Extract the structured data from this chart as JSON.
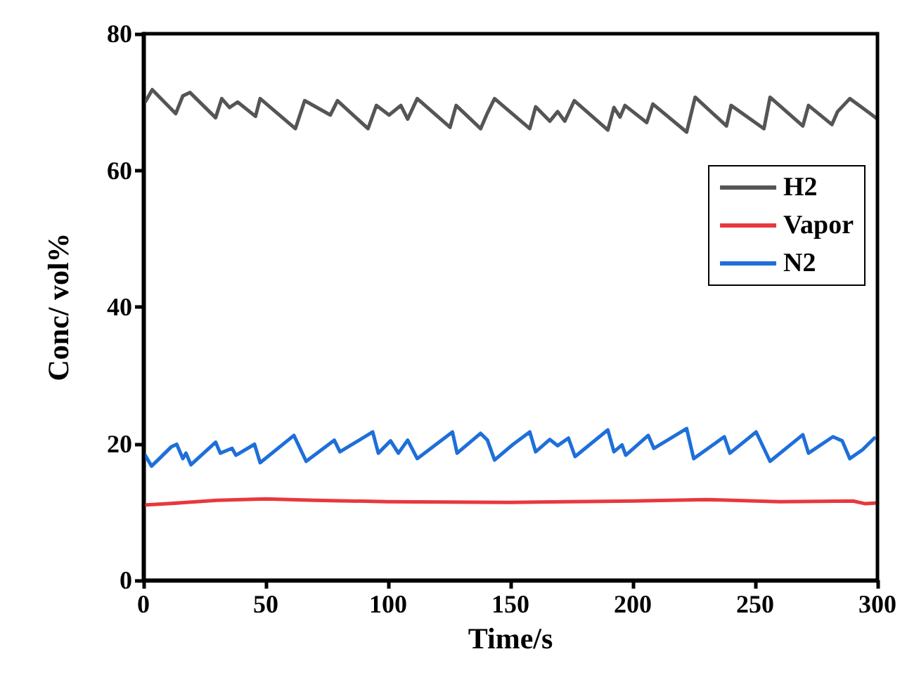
{
  "chart_data": {
    "type": "line",
    "xlabel": "Time/s",
    "ylabel": "Conc/ vol%",
    "xlim": [
      0,
      300
    ],
    "xticks": [
      0,
      50,
      100,
      150,
      200,
      250,
      300
    ],
    "ylim": [
      0,
      80
    ],
    "yticks": [
      0,
      20,
      40,
      60,
      80
    ],
    "grid": false,
    "legend": "top right",
    "marker": "none",
    "line_style": "solid",
    "series": [
      {
        "name": "H2",
        "color": "#555555",
        "x": [
          0.7,
          3.6,
          13.2,
          16.1,
          19,
          29.5,
          32,
          35.2,
          38.5,
          45.8,
          47.7,
          62.1,
          65.9,
          76.4,
          79.3,
          91.8,
          95.2,
          100.4,
          105.2,
          108,
          111.9,
          125.3,
          127.8,
          137.8,
          140.6,
          143.5,
          157.9,
          160.3,
          166.1,
          169.3,
          172.2,
          176.1,
          189.8,
          192.3,
          194.8,
          196.8,
          205.7,
          208.2,
          222,
          225.5,
          238.3,
          240.2,
          253.6,
          256.1,
          269.5,
          271.8,
          281.4,
          283.7,
          288.7,
          296.7,
          299.6
        ],
        "values": [
          70.0,
          71.8,
          68.3,
          70.9,
          71.4,
          67.7,
          70.5,
          69.2,
          70.0,
          67.9,
          70.5,
          66.1,
          70.2,
          68.1,
          70.2,
          66.1,
          69.5,
          68.1,
          69.5,
          67.5,
          70.5,
          66.3,
          69.5,
          66.1,
          68.4,
          70.5,
          66.1,
          69.3,
          67.2,
          68.6,
          67.2,
          70.2,
          65.9,
          69.2,
          67.8,
          69.5,
          67.0,
          69.7,
          65.6,
          70.7,
          66.5,
          69.5,
          66.1,
          70.7,
          66.5,
          69.5,
          66.7,
          68.6,
          70.5,
          68.4,
          67.6
        ]
      },
      {
        "name": "Vapor",
        "color": "#e8383d",
        "x": [
          0,
          10,
          30,
          50,
          70,
          100,
          150,
          200,
          230,
          260,
          290,
          295,
          300
        ],
        "values": [
          11.0,
          11.2,
          11.7,
          11.9,
          11.7,
          11.5,
          11.4,
          11.6,
          11.8,
          11.5,
          11.6,
          11.2,
          11.3
        ]
      },
      {
        "name": "N2",
        "color": "#1e6fd9",
        "x": [
          0.7,
          3.3,
          6.5,
          11.3,
          13.6,
          16.1,
          17.4,
          19.4,
          29.5,
          31.4,
          36.2,
          37.8,
          45.4,
          47.7,
          61.5,
          66.5,
          78,
          80.3,
          93.7,
          96,
          101,
          104.2,
          108,
          111.9,
          126.3,
          128.2,
          137.8,
          140.6,
          143.5,
          151.1,
          157.9,
          160.3,
          166.1,
          169.3,
          173.7,
          176.4,
          189.8,
          192.3,
          195.6,
          197.1,
          206.3,
          208.6,
          222,
          224.9,
          237.4,
          239.7,
          250.4,
          256.1,
          269.5,
          271.8,
          281.8,
          285.6,
          288.7,
          293.9,
          298.7
        ],
        "values": [
          18.3,
          16.7,
          17.8,
          19.5,
          19.9,
          17.8,
          18.6,
          16.9,
          20.2,
          18.6,
          19.3,
          18.3,
          19.9,
          17.2,
          21.2,
          17.4,
          20.5,
          18.8,
          21.7,
          18.6,
          20.4,
          18.6,
          20.5,
          17.8,
          21.7,
          18.6,
          21.5,
          20.5,
          17.6,
          19.9,
          21.7,
          18.8,
          20.6,
          19.7,
          20.8,
          18.1,
          22.0,
          18.8,
          19.8,
          18.3,
          21.2,
          19.3,
          22.2,
          17.8,
          21.0,
          18.6,
          21.7,
          17.4,
          21.3,
          18.6,
          21.0,
          20.4,
          17.8,
          19.1,
          20.8
        ]
      }
    ]
  }
}
